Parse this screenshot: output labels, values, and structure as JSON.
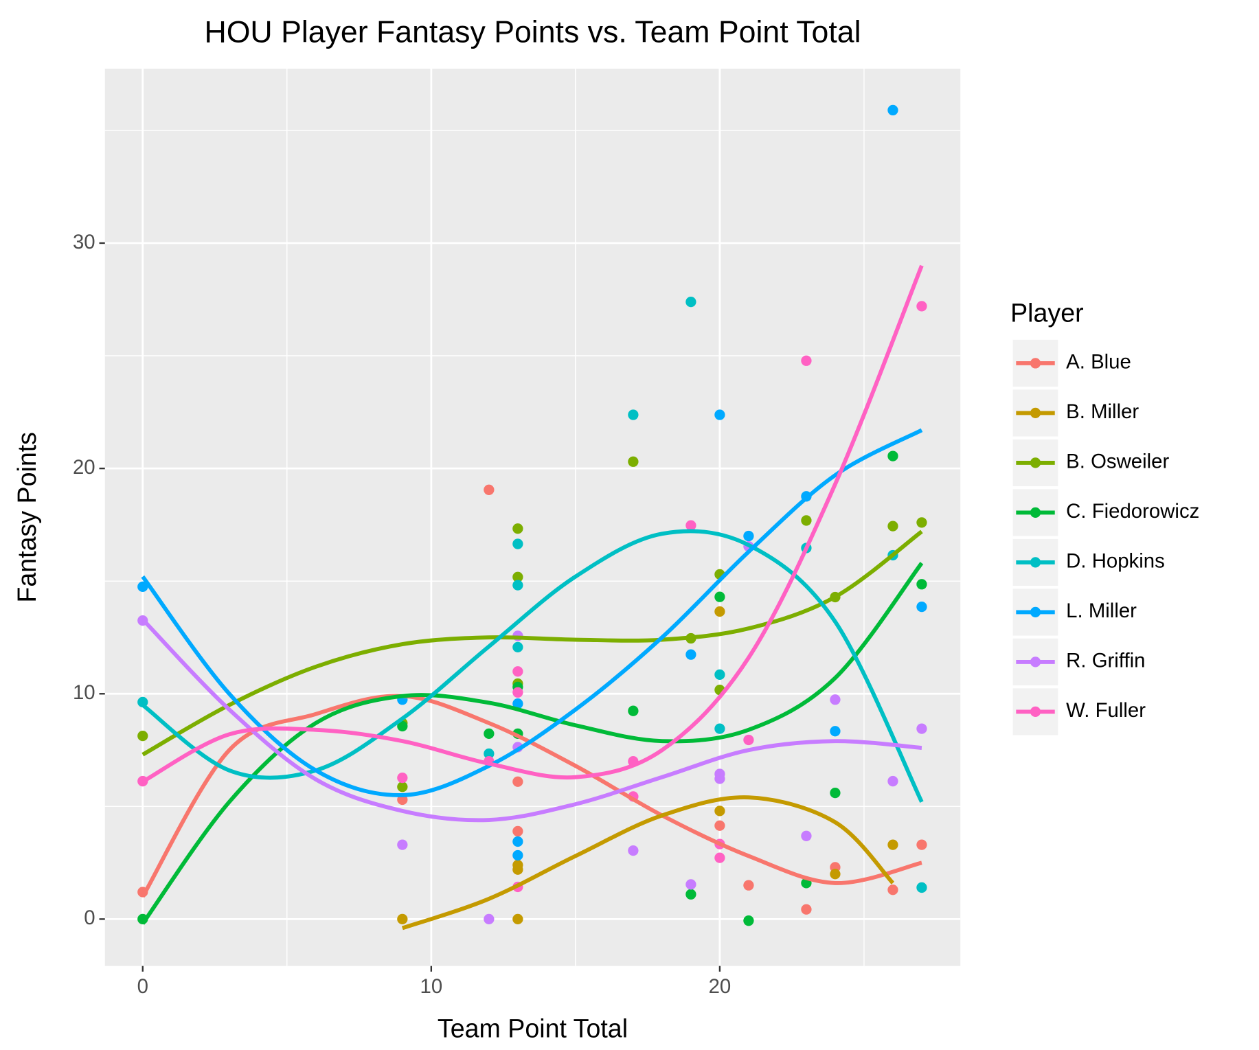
{
  "chart_data": {
    "type": "scatter",
    "title": "HOU Player Fantasy Points vs. Team Point Total",
    "x_label": "Team Point Total",
    "y_label": "Fantasy Points",
    "legend_title": "Player",
    "legend_position": "right",
    "grid": true,
    "xlim": [
      -1.31,
      28.34
    ],
    "ylim": [
      -2.08,
      37.74
    ],
    "xticks": [
      0,
      10,
      20
    ],
    "yticks": [
      0,
      10,
      20,
      30
    ],
    "series": [
      {
        "name": "A. Blue",
        "color": "#F8766D",
        "x": [
          0,
          9,
          12,
          13,
          13,
          20,
          21,
          23,
          24,
          26,
          27
        ],
        "values": [
          1.2,
          5.3,
          19.05,
          6.1,
          3.9,
          4.15,
          1.5,
          0.43,
          2.3,
          1.3,
          3.3
        ],
        "fit_x": [
          0,
          3,
          6,
          9,
          12,
          15,
          18,
          21,
          24,
          27
        ],
        "fit_values": [
          1.0,
          7.5,
          9.1,
          9.9,
          8.7,
          6.8,
          4.6,
          2.8,
          1.6,
          2.5
        ]
      },
      {
        "name": "B. Miller",
        "color": "#C49A00",
        "x": [
          9,
          13,
          13,
          13,
          20,
          20,
          24,
          26
        ],
        "values": [
          0,
          2.4,
          2.2,
          0,
          13.65,
          4.8,
          2.0,
          3.3
        ],
        "fit_x": [
          9,
          12,
          15,
          18,
          21,
          24,
          26
        ],
        "fit_values": [
          -0.4,
          0.9,
          2.8,
          4.6,
          5.4,
          4.3,
          1.6
        ]
      },
      {
        "name": "B. Osweiler",
        "color": "#7CAE00",
        "x": [
          0,
          9,
          9,
          13,
          13,
          13,
          17,
          19,
          20,
          20,
          23,
          24,
          26,
          27
        ],
        "values": [
          8.13,
          5.87,
          8.7,
          17.33,
          15.18,
          10.45,
          20.3,
          12.46,
          15.3,
          10.17,
          17.69,
          14.29,
          17.44,
          17.6
        ],
        "fit_x": [
          0,
          3,
          6,
          9,
          12,
          15,
          18,
          21,
          24,
          27
        ],
        "fit_values": [
          7.3,
          9.5,
          11.2,
          12.2,
          12.5,
          12.4,
          12.4,
          12.9,
          14.3,
          17.2
        ]
      },
      {
        "name": "C. Fiedorowicz",
        "color": "#00BA38",
        "x": [
          0,
          9,
          12,
          13,
          13,
          17,
          19,
          20,
          21,
          23,
          24,
          26,
          27
        ],
        "values": [
          0,
          8.56,
          8.23,
          10.3,
          8.23,
          9.24,
          1.1,
          14.3,
          -0.07,
          1.6,
          5.6,
          20.55,
          14.86
        ],
        "fit_x": [
          0,
          3,
          6,
          9,
          12,
          15,
          18,
          21,
          24,
          27
        ],
        "fit_values": [
          -0.2,
          5.2,
          8.7,
          9.9,
          9.6,
          8.6,
          7.9,
          8.4,
          10.7,
          15.8
        ]
      },
      {
        "name": "D. Hopkins",
        "color": "#00BFC4",
        "x": [
          0,
          12,
          13,
          13,
          13,
          17,
          19,
          20,
          20,
          23,
          26,
          27
        ],
        "values": [
          9.63,
          7.34,
          16.65,
          14.82,
          12.07,
          22.38,
          27.39,
          10.85,
          8.45,
          16.47,
          16.15,
          1.4
        ],
        "fit_x": [
          0,
          3,
          6,
          9,
          12,
          15,
          18,
          21,
          24,
          27
        ],
        "fit_values": [
          9.5,
          6.6,
          6.6,
          8.9,
          12.1,
          15.2,
          17.1,
          16.6,
          13.2,
          5.2
        ]
      },
      {
        "name": "L. Miller",
        "color": "#00A9FF",
        "x": [
          0,
          9,
          13,
          13,
          13,
          19,
          20,
          21,
          23,
          24,
          26,
          27
        ],
        "values": [
          14.75,
          9.74,
          9.56,
          3.44,
          2.83,
          11.74,
          22.38,
          17.0,
          18.76,
          8.34,
          35.9,
          13.86
        ],
        "fit_x": [
          0,
          3,
          6,
          9,
          12,
          15,
          18,
          21,
          24,
          27
        ],
        "fit_values": [
          15.2,
          10.0,
          6.6,
          5.5,
          6.8,
          9.3,
          12.5,
          16.3,
          19.7,
          21.7
        ]
      },
      {
        "name": "R. Griffin",
        "color": "#C77CFF",
        "x": [
          0,
          9,
          12,
          13,
          13,
          17,
          19,
          20,
          20,
          21,
          23,
          24,
          26,
          27
        ],
        "values": [
          13.25,
          3.3,
          0,
          12.57,
          7.63,
          3.04,
          1.54,
          6.44,
          6.23,
          16.54,
          3.69,
          9.74,
          6.12,
          8.45
        ],
        "fit_x": [
          0,
          3,
          6,
          9,
          12,
          15,
          18,
          21,
          24,
          27
        ],
        "fit_values": [
          13.3,
          9.3,
          6.2,
          4.8,
          4.4,
          5.1,
          6.3,
          7.5,
          7.9,
          7.6
        ]
      },
      {
        "name": "W. Fuller",
        "color": "#FF61C3",
        "x": [
          0,
          9,
          12,
          13,
          13,
          13,
          17,
          17,
          19,
          20,
          20,
          21,
          23,
          27
        ],
        "values": [
          6.12,
          6.27,
          7.0,
          10.99,
          10.06,
          1.43,
          7.0,
          5.44,
          17.47,
          3.33,
          2.72,
          7.95,
          24.78,
          27.2
        ],
        "fit_x": [
          0,
          3,
          6,
          9,
          12,
          15,
          18,
          21,
          24,
          27
        ],
        "fit_values": [
          6.1,
          8.2,
          8.4,
          7.9,
          6.9,
          6.3,
          7.5,
          11.6,
          19.3,
          29.0
        ]
      }
    ]
  }
}
